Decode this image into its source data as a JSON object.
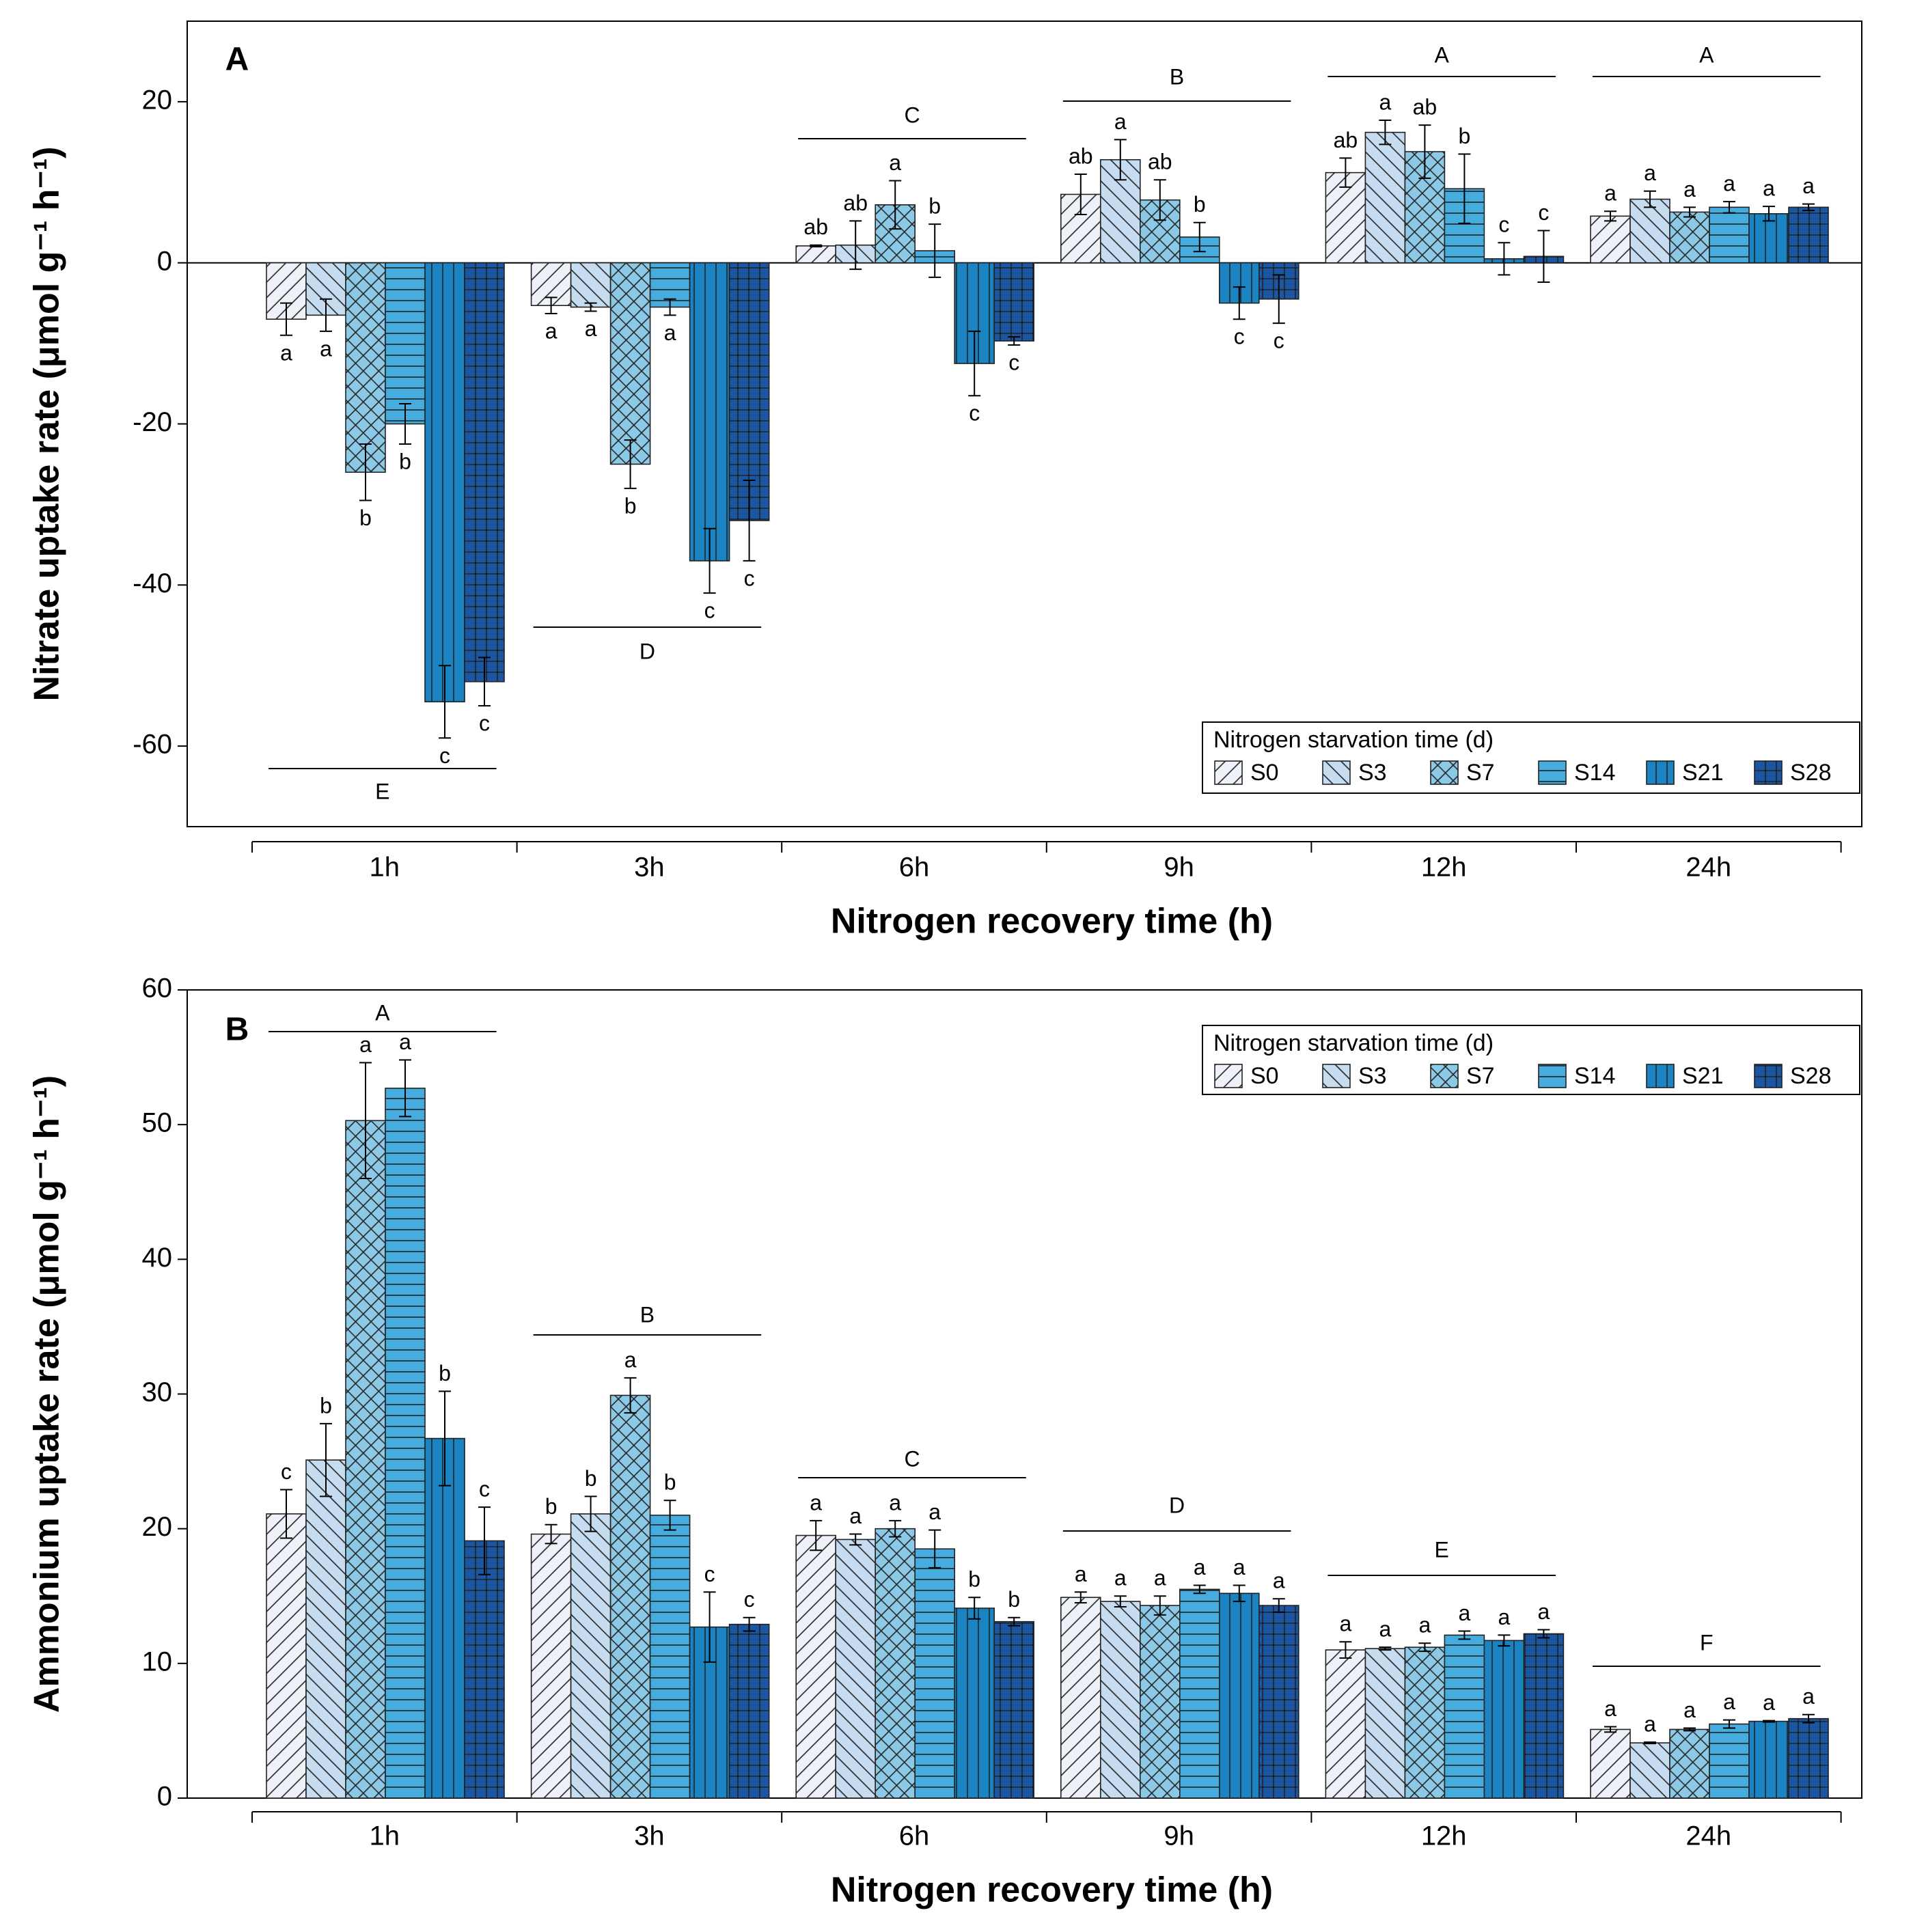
{
  "chart_data": [
    {
      "type": "bar",
      "panel": "A",
      "y_label": "Nitrate uptake rate (μmol g⁻¹ h⁻¹)",
      "x_label": "Nitrogen recovery time (h)",
      "categories": [
        "1h",
        "3h",
        "6h",
        "9h",
        "12h",
        "24h"
      ],
      "ylim": [
        -70,
        30
      ],
      "yticks": [
        -60,
        -40,
        -20,
        0,
        20
      ],
      "legend_title": "Nitrogen starvation time (d)",
      "group_letters": [
        "E",
        "D",
        "C",
        "B",
        "A",
        "A"
      ],
      "series": [
        {
          "name": "S0",
          "color": "#eef2f8",
          "hatch": "back-diagonal",
          "values": [
            -7,
            -5.3,
            2.1,
            8.5,
            11.2,
            5.8
          ],
          "errors": [
            2,
            1,
            0.1,
            2.5,
            1.8,
            0.6
          ],
          "letters": [
            "a",
            "a",
            "ab",
            "ab",
            "ab",
            "a"
          ]
        },
        {
          "name": "S3",
          "color": "#c6dcf0",
          "hatch": "diagonal",
          "values": [
            -6.5,
            -5.5,
            2.2,
            12.8,
            16.2,
            7.9
          ],
          "errors": [
            2,
            0.5,
            3,
            2.5,
            1.5,
            1
          ],
          "letters": [
            "a",
            "a",
            "ab",
            "a",
            "a",
            "a"
          ]
        },
        {
          "name": "S7",
          "color": "#8cc9e6",
          "hatch": "cross-diagonal",
          "values": [
            -26,
            -25,
            7.2,
            7.8,
            13.8,
            6.3
          ],
          "errors": [
            3.5,
            3,
            3,
            2.5,
            3.3,
            0.6
          ],
          "letters": [
            "b",
            "b",
            "a",
            "ab",
            "ab",
            "a"
          ]
        },
        {
          "name": "S14",
          "color": "#46acdd",
          "hatch": "horizontal",
          "values": [
            -20,
            -5.5,
            1.5,
            3.2,
            9.2,
            6.9
          ],
          "errors": [
            2.5,
            1,
            3.3,
            1.8,
            4.3,
            0.7
          ],
          "letters": [
            "b",
            "a",
            "b",
            "b",
            "b",
            "a"
          ]
        },
        {
          "name": "S21",
          "color": "#1a83c2",
          "hatch": "vertical",
          "values": [
            -54.5,
            -37,
            -12.5,
            -5,
            0.5,
            6.1
          ],
          "errors": [
            4.5,
            4,
            4,
            2,
            2,
            0.9
          ],
          "letters": [
            "c",
            "c",
            "c",
            "c",
            "c",
            "a"
          ]
        },
        {
          "name": "S28",
          "color": "#1b56a3",
          "hatch": "grid",
          "values": [
            -52,
            -32,
            -9.7,
            -4.5,
            0.8,
            6.9
          ],
          "errors": [
            3,
            5,
            0.5,
            3,
            3.2,
            0.4
          ],
          "letters": [
            "c",
            "c",
            "c",
            "c",
            "c",
            "a"
          ]
        }
      ]
    },
    {
      "type": "bar",
      "panel": "B",
      "y_label": "Ammonium uptake rate (μmol g⁻¹ h⁻¹)",
      "x_label": "Nitrogen recovery time (h)",
      "categories": [
        "1h",
        "3h",
        "6h",
        "9h",
        "12h",
        "24h"
      ],
      "ylim": [
        0,
        60
      ],
      "yticks": [
        0,
        10,
        20,
        30,
        40,
        50,
        60
      ],
      "legend_title": "Nitrogen starvation time (d)",
      "group_letters": [
        "A",
        "B",
        "C",
        "D",
        "E",
        "F"
      ],
      "series": [
        {
          "name": "S0",
          "color": "#eef2f8",
          "hatch": "back-diagonal",
          "values": [
            21.1,
            19.6,
            19.5,
            14.9,
            11.0,
            5.1
          ],
          "errors": [
            1.8,
            0.7,
            1.1,
            0.4,
            0.6,
            0.2
          ],
          "letters": [
            "c",
            "b",
            "a",
            "a",
            "a",
            "a"
          ]
        },
        {
          "name": "S3",
          "color": "#c6dcf0",
          "hatch": "diagonal",
          "values": [
            25.1,
            21.1,
            19.2,
            14.6,
            11.1,
            4.1
          ],
          "errors": [
            2.7,
            1.3,
            0.4,
            0.4,
            0.1,
            0.05
          ],
          "letters": [
            "b",
            "b",
            "a",
            "a",
            "a",
            "a"
          ]
        },
        {
          "name": "S7",
          "color": "#8cc9e6",
          "hatch": "cross-diagonal",
          "values": [
            50.3,
            29.9,
            20.0,
            14.3,
            11.2,
            5.1
          ],
          "errors": [
            4.3,
            1.3,
            0.6,
            0.7,
            0.3,
            0.1
          ],
          "letters": [
            "a",
            "a",
            "a",
            "a",
            "a",
            "a"
          ]
        },
        {
          "name": "S14",
          "color": "#46acdd",
          "hatch": "horizontal",
          "values": [
            52.7,
            21.0,
            18.5,
            15.5,
            12.1,
            5.5
          ],
          "errors": [
            2.1,
            1.1,
            1.4,
            0.3,
            0.3,
            0.3
          ],
          "letters": [
            "a",
            "b",
            "a",
            "a",
            "a",
            "a"
          ]
        },
        {
          "name": "S21",
          "color": "#1a83c2",
          "hatch": "vertical",
          "values": [
            26.7,
            12.7,
            14.1,
            15.2,
            11.7,
            5.7
          ],
          "errors": [
            3.5,
            2.6,
            0.8,
            0.6,
            0.4,
            0.05
          ],
          "letters": [
            "b",
            "c",
            "b",
            "a",
            "a",
            "a"
          ]
        },
        {
          "name": "S28",
          "color": "#1b56a3",
          "hatch": "grid",
          "values": [
            19.1,
            12.9,
            13.1,
            14.3,
            12.2,
            5.9
          ],
          "errors": [
            2.5,
            0.5,
            0.3,
            0.5,
            0.3,
            0.3
          ],
          "letters": [
            "c",
            "c",
            "b",
            "a",
            "a",
            "a"
          ]
        }
      ]
    }
  ]
}
